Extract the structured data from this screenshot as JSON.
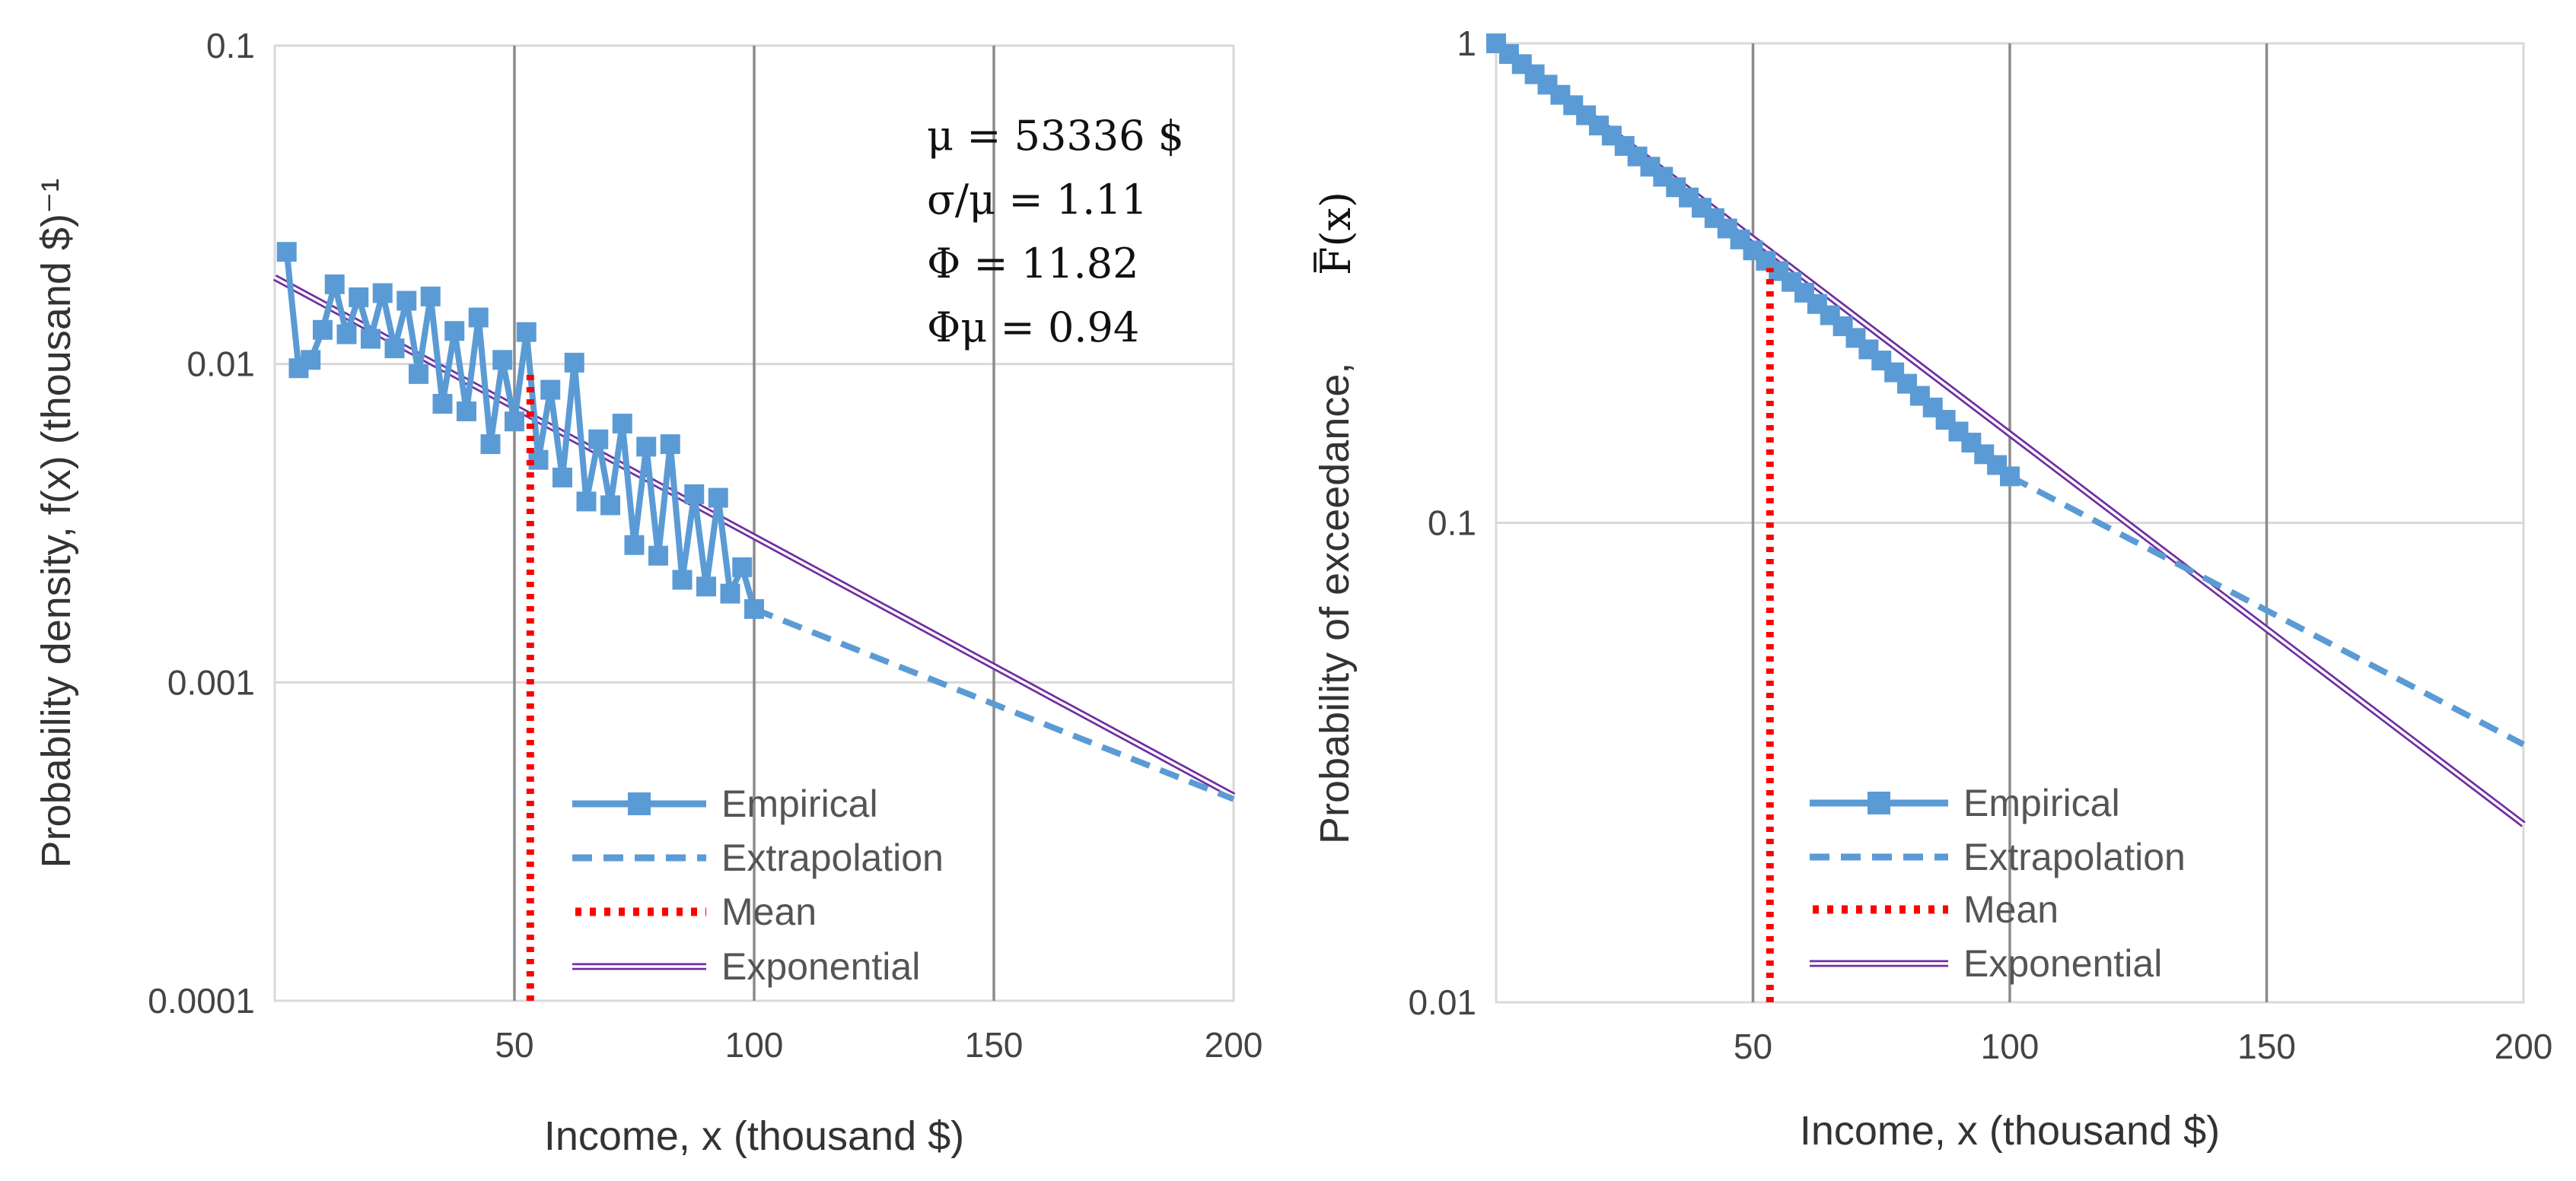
{
  "chart_data": [
    {
      "type": "line",
      "panel": "left",
      "xlabel": "Income, x (thousand $)",
      "ylabel": "Probability density, f(x) (thousand $)⁻¹",
      "xlim": [
        0,
        200
      ],
      "ylim": [
        0.0001,
        0.1
      ],
      "yscale": "log",
      "x_ticks": [
        50,
        100,
        150,
        200
      ],
      "x_tick_labels": [
        "50",
        "100",
        "150",
        "200"
      ],
      "y_ticks": [
        0.0001,
        0.001,
        0.01,
        0.1
      ],
      "y_tick_labels": [
        "0.0001",
        "0.001",
        "0.01",
        "0.1"
      ],
      "grid": true,
      "legend_position": "bottom-center",
      "annotations": [
        "μ = 53336 $",
        "σ/μ = 1.11",
        "Φ = 11.82",
        "Φμ = 0.94"
      ],
      "series": [
        {
          "name": "Empirical",
          "style": "line-markers",
          "color": "#5b9bd5",
          "x": [
            2.5,
            5,
            7.5,
            10,
            12.5,
            15,
            17.5,
            20,
            22.5,
            25,
            27.5,
            30,
            32.5,
            35,
            37.5,
            40,
            42.5,
            45,
            47.5,
            50,
            52.5,
            55,
            57.5,
            60,
            62.5,
            65,
            67.5,
            70,
            72.5,
            75,
            77.5,
            80,
            82.5,
            85,
            87.5,
            90,
            92.5,
            95,
            97.5,
            100
          ],
          "values": [
            0.0225,
            0.0097,
            0.0103,
            0.0128,
            0.0178,
            0.0124,
            0.0162,
            0.012,
            0.0167,
            0.0112,
            0.0158,
            0.0093,
            0.0163,
            0.0075,
            0.0127,
            0.0071,
            0.014,
            0.0056,
            0.0103,
            0.0066,
            0.0126,
            0.005,
            0.0083,
            0.0044,
            0.0101,
            0.0037,
            0.0058,
            0.0036,
            0.0065,
            0.0027,
            0.0055,
            0.0025,
            0.0056,
            0.0021,
            0.0039,
            0.002,
            0.0038,
            0.0019,
            0.0023,
            0.0017
          ]
        },
        {
          "name": "Extrapolation",
          "style": "dashed",
          "color": "#5b9bd5",
          "x": [
            100,
            200
          ],
          "values": [
            0.0017,
            0.00043
          ]
        },
        {
          "name": "Mean",
          "style": "dotted",
          "color": "#ff0000",
          "x": [
            53.3,
            53.3
          ],
          "values": [
            0.0001,
            0.0097
          ]
        },
        {
          "name": "Exponential",
          "style": "double-line",
          "color": "#7030a0",
          "x": [
            0,
            200
          ],
          "values": [
            0.0187,
            0.00044
          ]
        }
      ]
    },
    {
      "type": "line",
      "panel": "right",
      "xlabel": "Income, x (thousand $)",
      "ylabel": "Probability of exceedance,",
      "ylabel_symbol": "F(x)",
      "xlim": [
        0,
        200
      ],
      "ylim": [
        0.01,
        1
      ],
      "yscale": "log",
      "x_ticks": [
        50,
        100,
        150,
        200
      ],
      "x_tick_labels": [
        "50",
        "100",
        "150",
        "200"
      ],
      "y_ticks": [
        0.01,
        0.1,
        1
      ],
      "y_tick_labels": [
        "0.01",
        "0.1",
        "1"
      ],
      "grid": true,
      "legend_position": "bottom-center",
      "series": [
        {
          "name": "Empirical",
          "style": "line-markers",
          "color": "#5b9bd5",
          "x": [
            0,
            2.5,
            5,
            7.5,
            10,
            12.5,
            15,
            17.5,
            20,
            22.5,
            25,
            27.5,
            30,
            32.5,
            35,
            37.5,
            40,
            42.5,
            45,
            47.5,
            50,
            52.5,
            55,
            57.5,
            60,
            62.5,
            65,
            67.5,
            70,
            72.5,
            75,
            77.5,
            80,
            82.5,
            85,
            87.5,
            90,
            92.5,
            95,
            97.5,
            100
          ],
          "values": [
            1.0,
            0.95,
            0.905,
            0.862,
            0.82,
            0.781,
            0.743,
            0.708,
            0.674,
            0.642,
            0.611,
            0.581,
            0.553,
            0.527,
            0.501,
            0.477,
            0.454,
            0.432,
            0.411,
            0.39,
            0.37,
            0.352,
            0.335,
            0.318,
            0.302,
            0.286,
            0.271,
            0.257,
            0.243,
            0.23,
            0.218,
            0.206,
            0.195,
            0.184,
            0.174,
            0.164,
            0.155,
            0.147,
            0.139,
            0.132,
            0.125
          ]
        },
        {
          "name": "Extrapolation",
          "style": "dashed",
          "color": "#5b9bd5",
          "x": [
            100,
            200
          ],
          "values": [
            0.125,
            0.0345
          ]
        },
        {
          "name": "Mean",
          "style": "dotted",
          "color": "#ff0000",
          "x": [
            53.3,
            53.3
          ],
          "values": [
            0.01,
            0.34
          ]
        },
        {
          "name": "Exponential",
          "style": "double-line",
          "color": "#7030a0",
          "x": [
            0,
            200
          ],
          "values": [
            1.0,
            0.0235
          ]
        }
      ]
    }
  ]
}
